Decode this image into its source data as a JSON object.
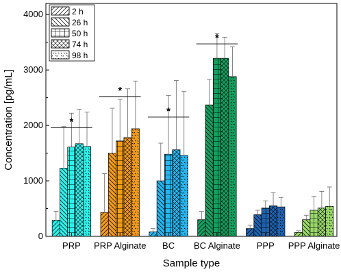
{
  "chart_data": {
    "type": "bar",
    "title": "",
    "xlabel": "Sample type",
    "ylabel": "Concentration [pg/mL]",
    "ylim": [
      0,
      4200
    ],
    "yticks": [
      0,
      1000,
      2000,
      3000,
      4000
    ],
    "ytick_labels": [
      "0",
      "1000",
      "2000",
      "3000",
      "4000"
    ],
    "categories": [
      "PRP",
      "PRP Alginate",
      "BC",
      "BC Alginate",
      "PPP",
      "PPP Alginate"
    ],
    "category_colors": [
      "#2ff0ea",
      "#f29b1c",
      "#26b6f0",
      "#15a060",
      "#1d63b0",
      "#9ad86a"
    ],
    "series": [
      {
        "name": "2 h",
        "pattern": "diag-up",
        "values": [
          290,
          430,
          80,
          300,
          140,
          70
        ],
        "errors": [
          160,
          700,
          60,
          150,
          60,
          30
        ]
      },
      {
        "name": "26 h",
        "pattern": "diag-down",
        "values": [
          1230,
          1500,
          1000,
          2370,
          390,
          300
        ],
        "errors": [
          750,
          810,
          680,
          460,
          80,
          80
        ]
      },
      {
        "name": "50 h",
        "pattern": "grid",
        "values": [
          1610,
          1720,
          1480,
          3210,
          510,
          470
        ],
        "errors": [
          610,
          750,
          1060,
          450,
          130,
          250
        ]
      },
      {
        "name": "74 h",
        "pattern": "crosshatch",
        "values": [
          1670,
          1780,
          1560,
          3210,
          550,
          510
        ],
        "errors": [
          620,
          880,
          1250,
          380,
          240,
          300
        ]
      },
      {
        "name": "98 h",
        "pattern": "dots",
        "values": [
          1620,
          1940,
          1460,
          2880,
          530,
          540
        ],
        "errors": [
          620,
          860,
          1150,
          540,
          170,
          350
        ]
      }
    ],
    "significance": [
      {
        "category": "PRP",
        "label": "*",
        "y": 1250
      },
      {
        "category": "PRP Alginate",
        "label": "*",
        "y": 1430
      },
      {
        "category": "BC",
        "label": "*",
        "y": 1020
      },
      {
        "category": "BC Alginate",
        "label": "*",
        "y": 1250
      }
    ],
    "legend_position": "top-left",
    "grid": false
  }
}
